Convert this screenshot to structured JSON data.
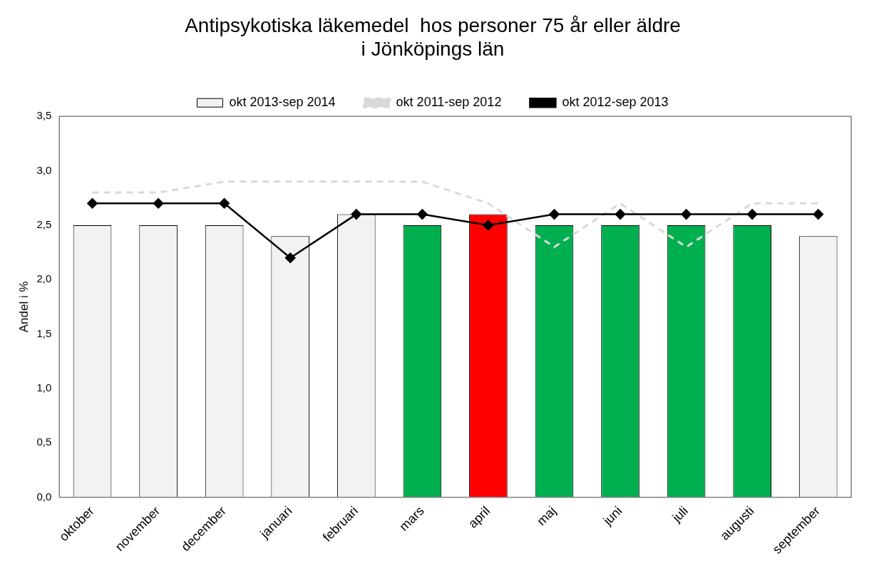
{
  "chart_data": {
    "type": "bar",
    "title": [
      "Antipsykotiska läkemedel  hos personer 75 år eller äldre",
      "i Jönköpings län"
    ],
    "y_label": "Andel i %",
    "categories": [
      "oktober",
      "november",
      "december",
      "januari",
      "februari",
      "mars",
      "april",
      "maj",
      "juni",
      "juli",
      "augusti",
      "september"
    ],
    "series": [
      {
        "name": "okt 2013-sep 2014",
        "type": "bar",
        "colors": [
          "#f2f2f2",
          "#f2f2f2",
          "#f2f2f2",
          "#f2f2f2",
          "#f2f2f2",
          "#00b050",
          "#ff0000",
          "#00b050",
          "#00b050",
          "#00b050",
          "#00b050",
          "#f2f2f2"
        ],
        "values": [
          2.5,
          2.5,
          2.5,
          2.4,
          2.6,
          2.5,
          2.6,
          2.5,
          2.5,
          2.5,
          2.5,
          2.4
        ]
      },
      {
        "name": "okt 2011-sep 2012",
        "type": "line",
        "color": "#d9d9d9",
        "line_style": "dashed",
        "marker": "none",
        "values": [
          2.8,
          2.8,
          2.9,
          2.9,
          2.9,
          2.9,
          2.7,
          2.3,
          2.7,
          2.3,
          2.7,
          2.7
        ]
      },
      {
        "name": "okt 2012-sep 2013",
        "type": "line",
        "color": "#000000",
        "line_style": "solid",
        "marker": "diamond",
        "values": [
          2.7,
          2.7,
          2.7,
          2.2,
          2.6,
          2.6,
          2.5,
          2.6,
          2.6,
          2.6,
          2.6,
          2.6
        ]
      }
    ],
    "ylim": [
      0,
      3.5
    ],
    "yticks": [
      {
        "value": 0,
        "label": "0,0"
      },
      {
        "value": 0.5,
        "label": "0,5"
      },
      {
        "value": 1,
        "label": "1,0"
      },
      {
        "value": 1.5,
        "label": "1,5"
      },
      {
        "value": 2,
        "label": "2,0"
      },
      {
        "value": 2.5,
        "label": "2,5"
      },
      {
        "value": 3,
        "label": "3,0"
      },
      {
        "value": 3.5,
        "label": "3,5"
      }
    ],
    "grid": false,
    "legend": "top"
  }
}
